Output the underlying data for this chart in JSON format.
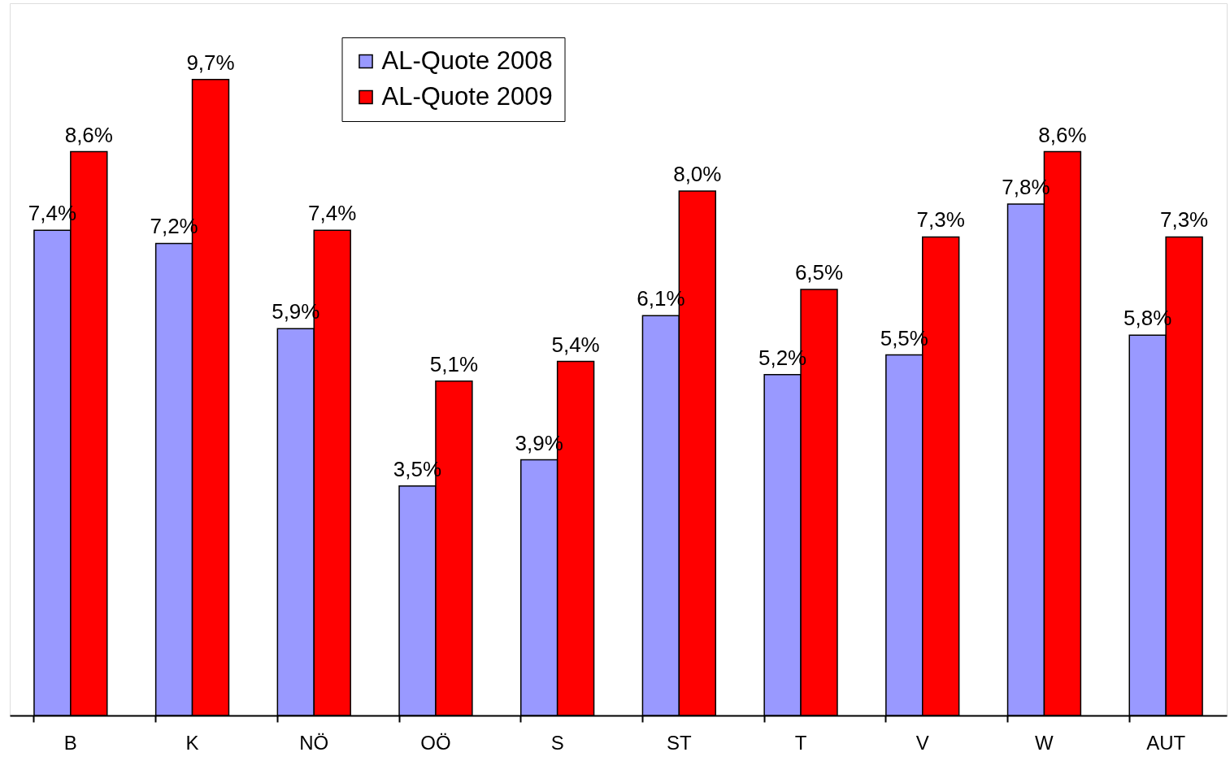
{
  "chart_data": {
    "type": "bar",
    "categories": [
      "B",
      "K",
      "NÖ",
      "OÖ",
      "S",
      "ST",
      "T",
      "V",
      "W",
      "AUT"
    ],
    "series": [
      {
        "name": "AL-Quote 2008",
        "color": "#9999ff",
        "values": [
          7.4,
          7.2,
          5.9,
          3.5,
          3.9,
          6.1,
          5.2,
          5.5,
          7.8,
          5.8
        ],
        "value_labels": [
          "7,4%",
          "7,2%",
          "5,9%",
          "3,5%",
          "3,9%",
          "6,1%",
          "5,2%",
          "5,5%",
          "7,8%",
          "5,8%"
        ]
      },
      {
        "name": "AL-Quote 2009",
        "color": "#ff0000",
        "values": [
          8.6,
          9.7,
          7.4,
          5.1,
          5.4,
          8.0,
          6.5,
          7.3,
          8.6,
          7.3
        ],
        "value_labels": [
          "8,6%",
          "9,7%",
          "7,4%",
          "5,1%",
          "5,4%",
          "8,0%",
          "6,5%",
          "7,3%",
          "8,6%",
          "7,3%"
        ]
      }
    ],
    "legend": "top",
    "grid": false
  }
}
